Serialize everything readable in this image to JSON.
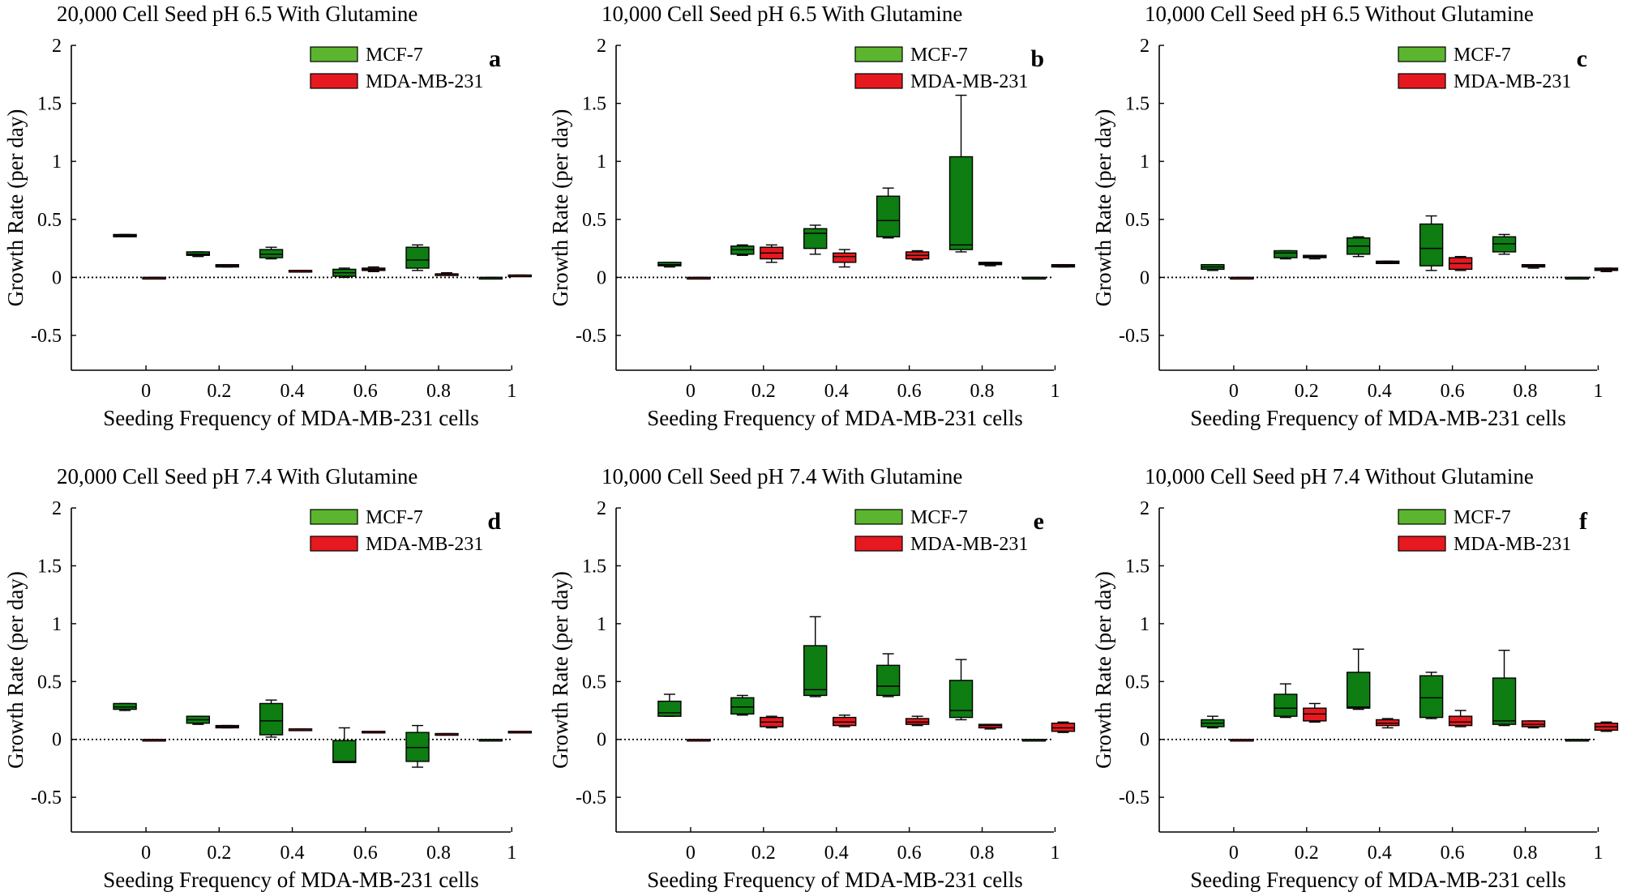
{
  "legend": {
    "mcf7_label": "MCF-7",
    "mda_label": "MDA-MB-231"
  },
  "colors": {
    "mcf7_box": "#0e7d12",
    "mcf7_legend": "#5bb52e",
    "mda_box": "#e5191f",
    "axis": "#000000"
  },
  "chart_data": [
    {
      "type": "box",
      "letter": "a",
      "title": "20,000 Cell Seed pH 6.5 With Glutamine",
      "xlabel": "Seeding Frequency of MDA-MB-231 cells",
      "ylabel": "Growth Rate (per day)",
      "ylim": [
        -0.8,
        2
      ],
      "yticks": [
        "2",
        "1.5",
        "1",
        "0.5",
        "0",
        "-0.5"
      ],
      "categories": [
        "0",
        "0.2",
        "0.4",
        "0.6",
        "0.8",
        "1"
      ],
      "series": [
        {
          "name": "MCF-7",
          "boxes": [
            {
              "min": 0.35,
              "q1": 0.35,
              "median": 0.36,
              "q3": 0.37,
              "max": 0.37
            },
            {
              "min": 0.18,
              "q1": 0.19,
              "median": 0.2,
              "q3": 0.22,
              "max": 0.22
            },
            {
              "min": 0.16,
              "q1": 0.17,
              "median": 0.2,
              "q3": 0.24,
              "max": 0.26
            },
            {
              "min": 0.0,
              "q1": 0.01,
              "median": 0.04,
              "q3": 0.07,
              "max": 0.08
            },
            {
              "min": 0.06,
              "q1": 0.08,
              "median": 0.15,
              "q3": 0.26,
              "max": 0.28
            },
            {
              "min": 0.0,
              "q1": 0.0,
              "median": 0.0,
              "q3": 0.0,
              "max": 0.0
            }
          ]
        },
        {
          "name": "MDA-MB-231",
          "boxes": [
            {
              "min": 0.0,
              "q1": 0.0,
              "median": 0.0,
              "q3": 0.0,
              "max": 0.0
            },
            {
              "min": 0.09,
              "q1": 0.09,
              "median": 0.1,
              "q3": 0.11,
              "max": 0.11
            },
            {
              "min": 0.05,
              "q1": 0.05,
              "median": 0.06,
              "q3": 0.06,
              "max": 0.06
            },
            {
              "min": 0.05,
              "q1": 0.06,
              "median": 0.07,
              "q3": 0.08,
              "max": 0.09
            },
            {
              "min": 0.02,
              "q1": 0.02,
              "median": 0.03,
              "q3": 0.03,
              "max": 0.04
            },
            {
              "min": 0.01,
              "q1": 0.01,
              "median": 0.02,
              "q3": 0.02,
              "max": 0.02
            }
          ]
        }
      ]
    },
    {
      "type": "box",
      "letter": "b",
      "title": "10,000 Cell Seed pH 6.5 With Glutamine",
      "xlabel": "Seeding Frequency of MDA-MB-231 cells",
      "ylabel": "Growth Rate (per day)",
      "ylim": [
        -0.8,
        2
      ],
      "yticks": [
        "2",
        "1.5",
        "1",
        "0.5",
        "0",
        "-0.5"
      ],
      "categories": [
        "0",
        "0.2",
        "0.4",
        "0.6",
        "0.8",
        "1"
      ],
      "series": [
        {
          "name": "MCF-7",
          "boxes": [
            {
              "min": 0.09,
              "q1": 0.1,
              "median": 0.11,
              "q3": 0.13,
              "max": 0.13
            },
            {
              "min": 0.19,
              "q1": 0.2,
              "median": 0.24,
              "q3": 0.27,
              "max": 0.28
            },
            {
              "min": 0.2,
              "q1": 0.25,
              "median": 0.38,
              "q3": 0.42,
              "max": 0.45
            },
            {
              "min": 0.34,
              "q1": 0.35,
              "median": 0.49,
              "q3": 0.7,
              "max": 0.77
            },
            {
              "min": 0.22,
              "q1": 0.24,
              "median": 0.28,
              "q3": 1.04,
              "max": 1.57
            },
            {
              "min": 0.0,
              "q1": 0.0,
              "median": 0.0,
              "q3": 0.0,
              "max": 0.0
            }
          ]
        },
        {
          "name": "MDA-MB-231",
          "boxes": [
            {
              "min": 0.0,
              "q1": 0.0,
              "median": 0.0,
              "q3": 0.0,
              "max": 0.0
            },
            {
              "min": 0.13,
              "q1": 0.16,
              "median": 0.21,
              "q3": 0.26,
              "max": 0.28
            },
            {
              "min": 0.09,
              "q1": 0.13,
              "median": 0.18,
              "q3": 0.21,
              "max": 0.24
            },
            {
              "min": 0.15,
              "q1": 0.16,
              "median": 0.19,
              "q3": 0.22,
              "max": 0.23
            },
            {
              "min": 0.1,
              "q1": 0.11,
              "median": 0.12,
              "q3": 0.13,
              "max": 0.13
            },
            {
              "min": 0.09,
              "q1": 0.09,
              "median": 0.1,
              "q3": 0.11,
              "max": 0.11
            }
          ]
        }
      ]
    },
    {
      "type": "box",
      "letter": "c",
      "title": "10,000 Cell Seed pH 6.5 Without Glutamine",
      "xlabel": "Seeding Frequency of MDA-MB-231 cells",
      "ylabel": "Growth Rate (per day)",
      "ylim": [
        -0.8,
        2
      ],
      "yticks": [
        "2",
        "1.5",
        "1",
        "0.5",
        "0",
        "-0.5"
      ],
      "categories": [
        "0",
        "0.2",
        "0.4",
        "0.6",
        "0.8",
        "1"
      ],
      "series": [
        {
          "name": "MCF-7",
          "boxes": [
            {
              "min": 0.06,
              "q1": 0.07,
              "median": 0.09,
              "q3": 0.11,
              "max": 0.11
            },
            {
              "min": 0.16,
              "q1": 0.17,
              "median": 0.21,
              "q3": 0.23,
              "max": 0.23
            },
            {
              "min": 0.18,
              "q1": 0.2,
              "median": 0.27,
              "q3": 0.34,
              "max": 0.35
            },
            {
              "min": 0.06,
              "q1": 0.1,
              "median": 0.25,
              "q3": 0.46,
              "max": 0.53
            },
            {
              "min": 0.2,
              "q1": 0.22,
              "median": 0.29,
              "q3": 0.35,
              "max": 0.37
            },
            {
              "min": 0.0,
              "q1": 0.0,
              "median": 0.0,
              "q3": 0.0,
              "max": 0.0
            }
          ]
        },
        {
          "name": "MDA-MB-231",
          "boxes": [
            {
              "min": 0.0,
              "q1": 0.0,
              "median": 0.0,
              "q3": 0.0,
              "max": 0.0
            },
            {
              "min": 0.16,
              "q1": 0.17,
              "median": 0.18,
              "q3": 0.19,
              "max": 0.19
            },
            {
              "min": 0.12,
              "q1": 0.12,
              "median": 0.13,
              "q3": 0.14,
              "max": 0.14
            },
            {
              "min": 0.06,
              "q1": 0.07,
              "median": 0.12,
              "q3": 0.17,
              "max": 0.18
            },
            {
              "min": 0.08,
              "q1": 0.09,
              "median": 0.1,
              "q3": 0.11,
              "max": 0.11
            },
            {
              "min": 0.05,
              "q1": 0.06,
              "median": 0.07,
              "q3": 0.08,
              "max": 0.08
            }
          ]
        }
      ]
    },
    {
      "type": "box",
      "letter": "d",
      "title": "20,000 Cell Seed pH 7.4 With Glutamine",
      "xlabel": "Seeding Frequency of MDA-MB-231 cells",
      "ylabel": "Growth Rate (per day)",
      "ylim": [
        -0.8,
        2
      ],
      "yticks": [
        "2",
        "1.5",
        "1",
        "0.5",
        "0",
        "-0.5"
      ],
      "categories": [
        "0",
        "0.2",
        "0.4",
        "0.6",
        "0.8",
        "1"
      ],
      "series": [
        {
          "name": "MCF-7",
          "boxes": [
            {
              "min": 0.25,
              "q1": 0.26,
              "median": 0.28,
              "q3": 0.31,
              "max": 0.31
            },
            {
              "min": 0.13,
              "q1": 0.14,
              "median": 0.17,
              "q3": 0.2,
              "max": 0.2
            },
            {
              "min": 0.02,
              "q1": 0.04,
              "median": 0.16,
              "q3": 0.31,
              "max": 0.34
            },
            {
              "min": -0.2,
              "q1": -0.2,
              "median": -0.19,
              "q3": -0.01,
              "max": 0.1
            },
            {
              "min": -0.24,
              "q1": -0.19,
              "median": -0.07,
              "q3": 0.06,
              "max": 0.12
            },
            {
              "min": 0.0,
              "q1": 0.0,
              "median": 0.0,
              "q3": 0.0,
              "max": 0.0
            }
          ]
        },
        {
          "name": "MDA-MB-231",
          "boxes": [
            {
              "min": 0.0,
              "q1": 0.0,
              "median": 0.0,
              "q3": 0.0,
              "max": 0.0
            },
            {
              "min": 0.1,
              "q1": 0.1,
              "median": 0.11,
              "q3": 0.12,
              "max": 0.12
            },
            {
              "min": 0.08,
              "q1": 0.08,
              "median": 0.09,
              "q3": 0.09,
              "max": 0.09
            },
            {
              "min": 0.06,
              "q1": 0.06,
              "median": 0.07,
              "q3": 0.07,
              "max": 0.07
            },
            {
              "min": 0.04,
              "q1": 0.04,
              "median": 0.05,
              "q3": 0.05,
              "max": 0.05
            },
            {
              "min": 0.06,
              "q1": 0.06,
              "median": 0.07,
              "q3": 0.07,
              "max": 0.07
            }
          ]
        }
      ]
    },
    {
      "type": "box",
      "letter": "e",
      "title": "10,000 Cell Seed pH 7.4 With Glutamine",
      "xlabel": "Seeding Frequency of MDA-MB-231 cells",
      "ylabel": "Growth Rate (per day)",
      "ylim": [
        -0.8,
        2
      ],
      "yticks": [
        "2",
        "1.5",
        "1",
        "0.5",
        "0",
        "-0.5"
      ],
      "categories": [
        "0",
        "0.2",
        "0.4",
        "0.6",
        "0.8",
        "1"
      ],
      "series": [
        {
          "name": "MCF-7",
          "boxes": [
            {
              "min": 0.2,
              "q1": 0.2,
              "median": 0.23,
              "q3": 0.33,
              "max": 0.39
            },
            {
              "min": 0.21,
              "q1": 0.22,
              "median": 0.28,
              "q3": 0.36,
              "max": 0.38
            },
            {
              "min": 0.37,
              "q1": 0.38,
              "median": 0.43,
              "q3": 0.81,
              "max": 1.06
            },
            {
              "min": 0.37,
              "q1": 0.38,
              "median": 0.46,
              "q3": 0.64,
              "max": 0.74
            },
            {
              "min": 0.17,
              "q1": 0.19,
              "median": 0.25,
              "q3": 0.51,
              "max": 0.69
            },
            {
              "min": 0.0,
              "q1": 0.0,
              "median": 0.0,
              "q3": 0.0,
              "max": 0.0
            }
          ]
        },
        {
          "name": "MDA-MB-231",
          "boxes": [
            {
              "min": 0.0,
              "q1": 0.0,
              "median": 0.0,
              "q3": 0.0,
              "max": 0.0
            },
            {
              "min": 0.1,
              "q1": 0.11,
              "median": 0.15,
              "q3": 0.19,
              "max": 0.2
            },
            {
              "min": 0.11,
              "q1": 0.12,
              "median": 0.15,
              "q3": 0.19,
              "max": 0.21
            },
            {
              "min": 0.12,
              "q1": 0.13,
              "median": 0.15,
              "q3": 0.18,
              "max": 0.2
            },
            {
              "min": 0.09,
              "q1": 0.1,
              "median": 0.12,
              "q3": 0.13,
              "max": 0.13
            },
            {
              "min": 0.06,
              "q1": 0.07,
              "median": 0.1,
              "q3": 0.14,
              "max": 0.15
            }
          ]
        }
      ]
    },
    {
      "type": "box",
      "letter": "f",
      "title": "10,000 Cell Seed pH 7.4 Without Glutamine",
      "xlabel": "Seeding Frequency of MDA-MB-231 cells",
      "ylabel": "Growth Rate (per day)",
      "ylim": [
        -0.8,
        2
      ],
      "yticks": [
        "2",
        "1.5",
        "1",
        "0.5",
        "0",
        "-0.5"
      ],
      "categories": [
        "0",
        "0.2",
        "0.4",
        "0.6",
        "0.8",
        "1"
      ],
      "series": [
        {
          "name": "MCF-7",
          "boxes": [
            {
              "min": 0.1,
              "q1": 0.11,
              "median": 0.14,
              "q3": 0.17,
              "max": 0.2
            },
            {
              "min": 0.19,
              "q1": 0.2,
              "median": 0.27,
              "q3": 0.39,
              "max": 0.48
            },
            {
              "min": 0.26,
              "q1": 0.27,
              "median": 0.28,
              "q3": 0.58,
              "max": 0.78
            },
            {
              "min": 0.18,
              "q1": 0.19,
              "median": 0.36,
              "q3": 0.55,
              "max": 0.58
            },
            {
              "min": 0.12,
              "q1": 0.13,
              "median": 0.16,
              "q3": 0.53,
              "max": 0.77
            },
            {
              "min": 0.0,
              "q1": 0.0,
              "median": 0.0,
              "q3": 0.0,
              "max": 0.0
            }
          ]
        },
        {
          "name": "MDA-MB-231",
          "boxes": [
            {
              "min": 0.0,
              "q1": 0.0,
              "median": 0.0,
              "q3": 0.0,
              "max": 0.0
            },
            {
              "min": 0.15,
              "q1": 0.16,
              "median": 0.22,
              "q3": 0.27,
              "max": 0.31
            },
            {
              "min": 0.1,
              "q1": 0.12,
              "median": 0.14,
              "q3": 0.17,
              "max": 0.18
            },
            {
              "min": 0.11,
              "q1": 0.12,
              "median": 0.15,
              "q3": 0.2,
              "max": 0.25
            },
            {
              "min": 0.1,
              "q1": 0.11,
              "median": 0.13,
              "q3": 0.16,
              "max": 0.16
            },
            {
              "min": 0.07,
              "q1": 0.08,
              "median": 0.11,
              "q3": 0.14,
              "max": 0.15
            }
          ]
        }
      ]
    }
  ]
}
